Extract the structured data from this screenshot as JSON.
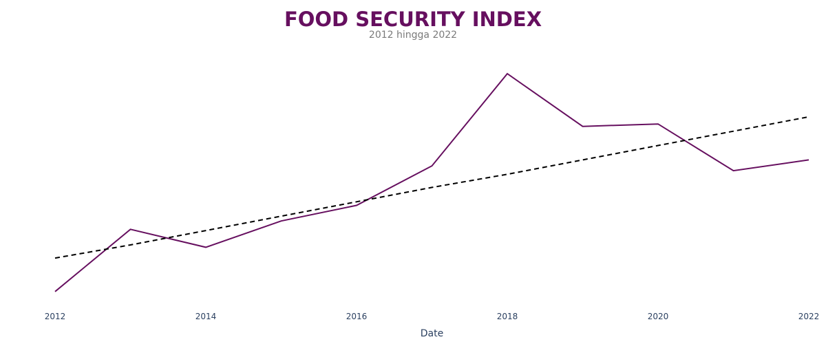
{
  "chart_data": {
    "type": "line",
    "title": "FOOD SECURITY INDEX",
    "subtitle": "2012 hingga 2022",
    "xlabel": "Date",
    "ylabel": "",
    "x": [
      2012,
      2013,
      2014,
      2015,
      2016,
      2017,
      2018,
      2019,
      2020,
      2021,
      2022
    ],
    "x_ticks": [
      "2012",
      "2014",
      "2016",
      "2018",
      "2020",
      "2022"
    ],
    "series": [
      {
        "values": [
          46.7,
          51.9,
          50.4,
          52.6,
          53.9,
          57.2,
          64.9,
          60.5,
          60.7,
          56.8,
          57.7
        ],
        "color": "#660f5f",
        "style": "solid"
      },
      {
        "values": [
          49.5,
          50.6,
          51.8,
          53.0,
          54.2,
          55.4,
          56.5,
          57.7,
          58.9,
          60.1,
          61.3
        ],
        "color": "#000000",
        "style": "dashed"
      }
    ],
    "ylim": [
      46.0,
      66.0
    ],
    "grid": false,
    "legend": "none"
  }
}
